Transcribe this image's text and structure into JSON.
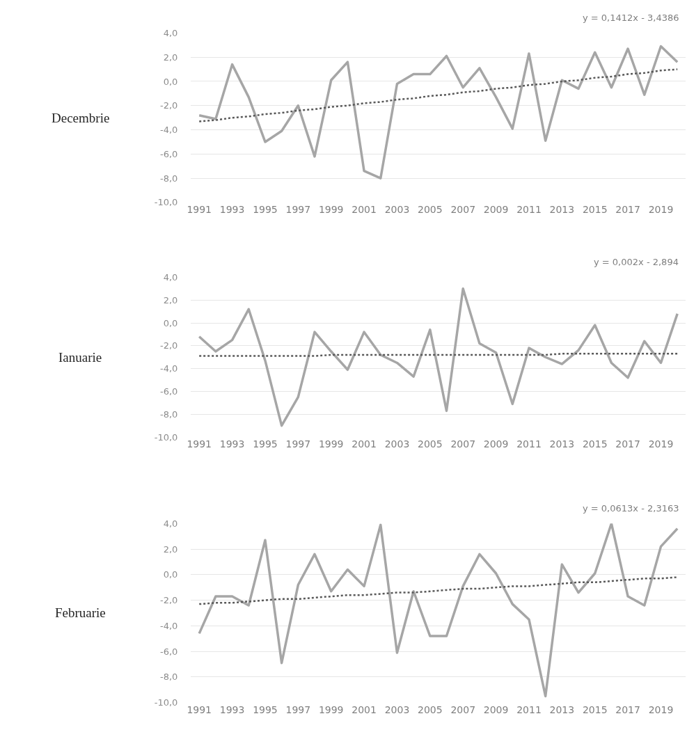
{
  "chart_data": [
    {
      "type": "line",
      "ylabel": "Decembrie",
      "annotations": [
        "y = 0,1412x - 3,4386"
      ],
      "grid": "y",
      "x": [
        1991,
        1992,
        1993,
        1994,
        1995,
        1996,
        1997,
        1998,
        1999,
        2000,
        2001,
        2002,
        2003,
        2004,
        2005,
        2006,
        2007,
        2008,
        2009,
        2010,
        2011,
        2012,
        2013,
        2014,
        2015,
        2016,
        2017,
        2018,
        2019,
        2020
      ],
      "xlim": [
        1990.5,
        2020.5
      ],
      "xticks": [
        1991,
        1993,
        1995,
        1997,
        1999,
        2001,
        2003,
        2005,
        2007,
        2009,
        2011,
        2013,
        2015,
        2017,
        2019
      ],
      "ylim": [
        -10,
        4
      ],
      "yticks": [
        {
          "value": -10,
          "label": "-10,0"
        },
        {
          "value": -8,
          "label": "-8,0"
        },
        {
          "value": -6,
          "label": "-6,0"
        },
        {
          "value": -4,
          "label": "-4,0"
        },
        {
          "value": -2,
          "label": "-2,0"
        },
        {
          "value": 0,
          "label": "0,0"
        },
        {
          "value": 2,
          "label": "2,0"
        },
        {
          "value": 4,
          "label": "4,0"
        }
      ],
      "series": [
        {
          "color": "#a6a6a6",
          "line_style": "solid",
          "values": [
            -2.8,
            -3.1,
            1.4,
            -1.3,
            -5.0,
            -4.1,
            -2.0,
            -6.2,
            0.1,
            1.6,
            -7.4,
            -8.0,
            -0.2,
            0.6,
            0.6,
            2.1,
            -0.5,
            1.1,
            -1.3,
            -3.9,
            2.3,
            -4.9,
            0.1,
            -0.6,
            2.4,
            -0.5,
            2.7,
            -1.1,
            2.9,
            1.6
          ]
        },
        {
          "color": "#595959",
          "line_style": "dotted",
          "values": [
            -3.3,
            -3.2,
            -3.0,
            -2.9,
            -2.7,
            -2.6,
            -2.4,
            -2.3,
            -2.1,
            -2.0,
            -1.8,
            -1.7,
            -1.5,
            -1.4,
            -1.2,
            -1.1,
            -0.9,
            -0.8,
            -0.6,
            -0.5,
            -0.3,
            -0.2,
            0.0,
            0.1,
            0.3,
            0.4,
            0.6,
            0.7,
            0.9,
            1.0
          ]
        }
      ]
    },
    {
      "type": "line",
      "ylabel": "Ianuarie",
      "annotations": [
        "y = 0,002x - 2,894"
      ],
      "grid": "y",
      "x": [
        1991,
        1992,
        1993,
        1994,
        1995,
        1996,
        1997,
        1998,
        1999,
        2000,
        2001,
        2002,
        2003,
        2004,
        2005,
        2006,
        2007,
        2008,
        2009,
        2010,
        2011,
        2012,
        2013,
        2014,
        2015,
        2016,
        2017,
        2018,
        2019,
        2020
      ],
      "xlim": [
        1990.5,
        2020.5
      ],
      "xticks": [
        1991,
        1993,
        1995,
        1997,
        1999,
        2001,
        2003,
        2005,
        2007,
        2009,
        2011,
        2013,
        2015,
        2017,
        2019
      ],
      "ylim": [
        -10,
        4
      ],
      "yticks": [
        {
          "value": -10,
          "label": "-10,0"
        },
        {
          "value": -8,
          "label": "-8,0"
        },
        {
          "value": -6,
          "label": "-6,0"
        },
        {
          "value": -4,
          "label": "-4,0"
        },
        {
          "value": -2,
          "label": "-2,0"
        },
        {
          "value": 0,
          "label": "0,0"
        },
        {
          "value": 2,
          "label": "2,0"
        },
        {
          "value": 4,
          "label": "4,0"
        }
      ],
      "series": [
        {
          "color": "#a6a6a6",
          "line_style": "solid",
          "values": [
            -1.2,
            -2.5,
            -1.5,
            1.2,
            -3.3,
            -9.0,
            -6.5,
            -0.8,
            -2.5,
            -4.1,
            -0.8,
            -2.8,
            -3.5,
            -4.7,
            -0.6,
            -7.7,
            3.0,
            -1.8,
            -2.6,
            -7.1,
            -2.2,
            -3.0,
            -3.6,
            -2.4,
            -0.2,
            -3.5,
            -4.8,
            -1.6,
            -3.5,
            0.8
          ]
        },
        {
          "color": "#595959",
          "line_style": "dotted",
          "values": [
            -2.9,
            -2.9,
            -2.9,
            -2.9,
            -2.9,
            -2.9,
            -2.9,
            -2.9,
            -2.8,
            -2.8,
            -2.8,
            -2.8,
            -2.8,
            -2.8,
            -2.8,
            -2.8,
            -2.8,
            -2.8,
            -2.8,
            -2.8,
            -2.8,
            -2.8,
            -2.7,
            -2.7,
            -2.7,
            -2.7,
            -2.7,
            -2.7,
            -2.7,
            -2.7
          ]
        }
      ]
    },
    {
      "type": "line",
      "ylabel": "Februarie",
      "annotations": [
        "y = 0,0613x - 2,3163"
      ],
      "grid": "y",
      "x": [
        1991,
        1992,
        1993,
        1994,
        1995,
        1996,
        1997,
        1998,
        1999,
        2000,
        2001,
        2002,
        2003,
        2004,
        2005,
        2006,
        2007,
        2008,
        2009,
        2010,
        2011,
        2012,
        2013,
        2014,
        2015,
        2016,
        2017,
        2018,
        2019,
        2020
      ],
      "xlim": [
        1990.5,
        2020.5
      ],
      "xticks": [
        1991,
        1993,
        1995,
        1997,
        1999,
        2001,
        2003,
        2005,
        2007,
        2009,
        2011,
        2013,
        2015,
        2017,
        2019
      ],
      "ylim": [
        -10,
        4
      ],
      "yticks": [
        {
          "value": -10,
          "label": "-10,0"
        },
        {
          "value": -8,
          "label": "-8,0"
        },
        {
          "value": -6,
          "label": "-6,0"
        },
        {
          "value": -4,
          "label": "-4,0"
        },
        {
          "value": -2,
          "label": "-2,0"
        },
        {
          "value": 0,
          "label": "0,0"
        },
        {
          "value": 2,
          "label": "2,0"
        },
        {
          "value": 4,
          "label": "4,0"
        }
      ],
      "series": [
        {
          "color": "#a6a6a6",
          "line_style": "solid",
          "values": [
            -4.6,
            -1.7,
            -1.7,
            -2.4,
            2.7,
            -6.9,
            -0.8,
            1.6,
            -1.3,
            0.4,
            -0.9,
            3.9,
            -6.1,
            -1.3,
            -4.8,
            -4.8,
            -0.9,
            1.6,
            0.1,
            -2.3,
            -3.5,
            -9.5,
            0.8,
            -1.4,
            0.1,
            4.0,
            -1.7,
            -2.4,
            2.2,
            3.6
          ]
        },
        {
          "color": "#595959",
          "line_style": "dotted",
          "values": [
            -2.3,
            -2.2,
            -2.2,
            -2.1,
            -2.0,
            -1.9,
            -1.9,
            -1.8,
            -1.7,
            -1.6,
            -1.6,
            -1.5,
            -1.4,
            -1.4,
            -1.3,
            -1.2,
            -1.1,
            -1.1,
            -1.0,
            -0.9,
            -0.9,
            -0.8,
            -0.7,
            -0.6,
            -0.6,
            -0.5,
            -0.4,
            -0.3,
            -0.3,
            -0.2
          ]
        }
      ]
    }
  ]
}
